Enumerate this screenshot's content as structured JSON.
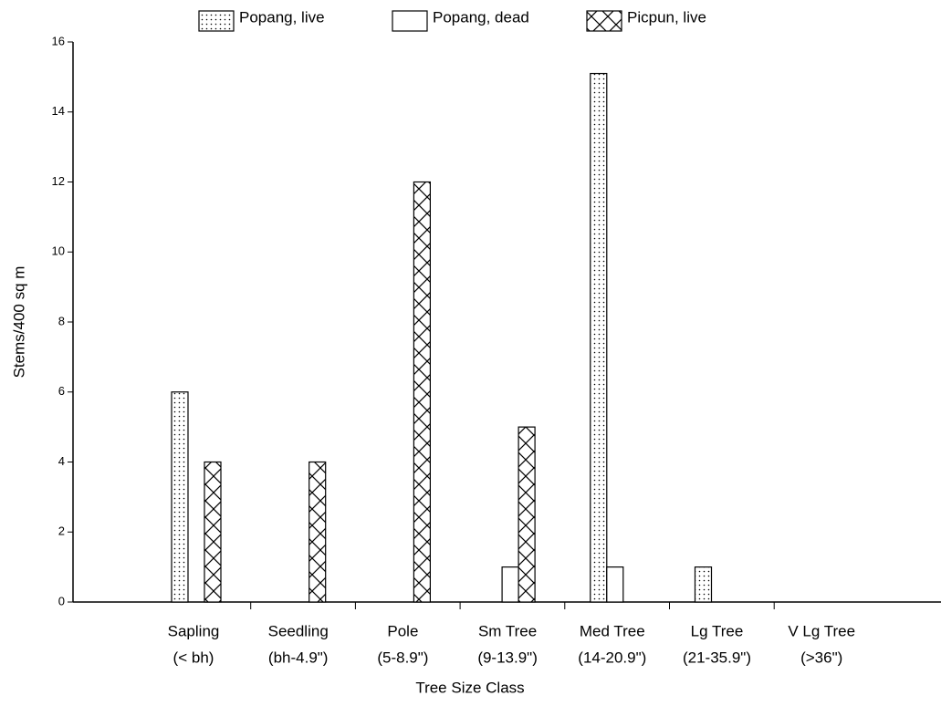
{
  "chart_data": {
    "type": "bar",
    "xlabel": "Tree Size Class",
    "ylabel": "Stems/400 sq m",
    "categories": [
      [
        "Sapling",
        "(< bh)"
      ],
      [
        "Seedling",
        "(bh-4.9\")"
      ],
      [
        "Pole",
        "(5-8.9\")"
      ],
      [
        "Sm Tree",
        "(9-13.9\")"
      ],
      [
        "Med Tree",
        "(14-20.9\")"
      ],
      [
        "Lg Tree",
        "(21-35.9\")"
      ],
      [
        "V Lg Tree",
        "(>36\")"
      ]
    ],
    "series": [
      {
        "name": "Popang, live",
        "color": "#000000",
        "pattern": "dots",
        "values": [
          6,
          0,
          0,
          0,
          15.1,
          1,
          0
        ]
      },
      {
        "name": "Popang, dead",
        "color": "#000000",
        "pattern": "none",
        "values": [
          0,
          0,
          0,
          1,
          1,
          0,
          0
        ]
      },
      {
        "name": "Picpun, live",
        "color": "#000000",
        "pattern": "crosshatch",
        "values": [
          4,
          4,
          12,
          5,
          0,
          0,
          0
        ]
      }
    ],
    "ylim": [
      0,
      16
    ],
    "yticks": [
      0,
      2,
      4,
      6,
      8,
      10,
      12,
      14,
      16
    ],
    "grid": false,
    "legend": "top"
  }
}
